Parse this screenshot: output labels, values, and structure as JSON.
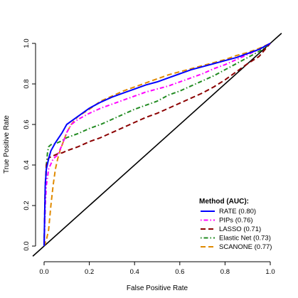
{
  "chart_data": {
    "type": "line",
    "title": "",
    "xlabel": "False Positive Rate",
    "ylabel": "True Positive Rate",
    "xlim": [
      0,
      1
    ],
    "ylim": [
      0,
      1
    ],
    "xticks": [
      "0.0",
      "0.2",
      "0.4",
      "0.6",
      "0.8",
      "1.0"
    ],
    "yticks": [
      "0.0",
      "0.2",
      "0.4",
      "0.6",
      "0.8",
      "1.0"
    ],
    "grid": false,
    "legend": {
      "title": "Method (AUC):",
      "position": "bottom-right"
    },
    "series": [
      {
        "name": "RATE (0.80)",
        "color": "#0000ff",
        "dash": "solid",
        "x": [
          0,
          0.005,
          0.01,
          0.02,
          0.03,
          0.05,
          0.08,
          0.1,
          0.15,
          0.2,
          0.25,
          0.3,
          0.35,
          0.4,
          0.45,
          0.5,
          0.55,
          0.6,
          0.65,
          0.7,
          0.75,
          0.8,
          0.85,
          0.9,
          0.95,
          1.0
        ],
        "y": [
          0,
          0.3,
          0.38,
          0.43,
          0.47,
          0.51,
          0.56,
          0.6,
          0.64,
          0.68,
          0.71,
          0.735,
          0.755,
          0.775,
          0.795,
          0.81,
          0.83,
          0.85,
          0.87,
          0.885,
          0.9,
          0.915,
          0.93,
          0.95,
          0.97,
          1.0
        ]
      },
      {
        "name": "PIPs (0.76)",
        "color": "#ff00ff",
        "dash": "dotdash",
        "x": [
          0,
          0.005,
          0.01,
          0.02,
          0.04,
          0.06,
          0.08,
          0.1,
          0.12,
          0.15,
          0.2,
          0.25,
          0.3,
          0.35,
          0.4,
          0.45,
          0.5,
          0.55,
          0.6,
          0.65,
          0.7,
          0.75,
          0.8,
          0.85,
          0.9,
          0.95,
          1.0
        ],
        "y": [
          0,
          0.2,
          0.3,
          0.38,
          0.43,
          0.45,
          0.5,
          0.56,
          0.6,
          0.625,
          0.655,
          0.68,
          0.7,
          0.72,
          0.74,
          0.76,
          0.775,
          0.79,
          0.81,
          0.83,
          0.85,
          0.875,
          0.895,
          0.92,
          0.945,
          0.97,
          1.0
        ]
      },
      {
        "name": "LASSO (0.71)",
        "color": "#8b0000",
        "dash": "dashed",
        "x": [
          0,
          0.005,
          0.01,
          0.02,
          0.04,
          0.06,
          0.08,
          0.1,
          0.15,
          0.2,
          0.25,
          0.3,
          0.35,
          0.4,
          0.45,
          0.5,
          0.55,
          0.6,
          0.65,
          0.7,
          0.75,
          0.8,
          0.85,
          0.9,
          0.95,
          1.0
        ],
        "y": [
          0,
          0.3,
          0.4,
          0.435,
          0.445,
          0.455,
          0.46,
          0.47,
          0.49,
          0.515,
          0.535,
          0.56,
          0.585,
          0.61,
          0.635,
          0.655,
          0.68,
          0.705,
          0.73,
          0.755,
          0.785,
          0.82,
          0.86,
          0.9,
          0.935,
          1.0
        ]
      },
      {
        "name": "Elastic Net (0.73)",
        "color": "#228b22",
        "dash": "dotdash",
        "x": [
          0,
          0.005,
          0.01,
          0.015,
          0.02,
          0.03,
          0.05,
          0.08,
          0.1,
          0.15,
          0.2,
          0.25,
          0.3,
          0.35,
          0.4,
          0.45,
          0.5,
          0.55,
          0.6,
          0.65,
          0.7,
          0.75,
          0.8,
          0.85,
          0.9,
          0.95,
          1.0
        ],
        "y": [
          0,
          0.2,
          0.4,
          0.46,
          0.49,
          0.5,
          0.505,
          0.52,
          0.535,
          0.555,
          0.58,
          0.6,
          0.625,
          0.65,
          0.675,
          0.695,
          0.715,
          0.745,
          0.765,
          0.79,
          0.815,
          0.84,
          0.87,
          0.9,
          0.93,
          0.96,
          1.0
        ]
      },
      {
        "name": "SCANONE (0.77)",
        "color": "#e08a00",
        "dash": "dashed",
        "x": [
          0,
          0.01,
          0.02,
          0.03,
          0.04,
          0.05,
          0.06,
          0.07,
          0.08,
          0.1,
          0.12,
          0.15,
          0.2,
          0.25,
          0.3,
          0.35,
          0.4,
          0.45,
          0.5,
          0.55,
          0.6,
          0.65,
          0.7,
          0.75,
          0.8,
          0.85,
          0.9,
          0.95,
          1.0
        ],
        "y": [
          0,
          0.03,
          0.08,
          0.2,
          0.3,
          0.38,
          0.43,
          0.47,
          0.5,
          0.56,
          0.6,
          0.64,
          0.675,
          0.715,
          0.74,
          0.765,
          0.785,
          0.805,
          0.825,
          0.845,
          0.86,
          0.875,
          0.89,
          0.905,
          0.92,
          0.94,
          0.955,
          0.975,
          1.0
        ]
      }
    ],
    "reference_line": {
      "color": "#000000",
      "x": [
        -0.05,
        1.05
      ],
      "y": [
        -0.05,
        1.05
      ]
    }
  }
}
